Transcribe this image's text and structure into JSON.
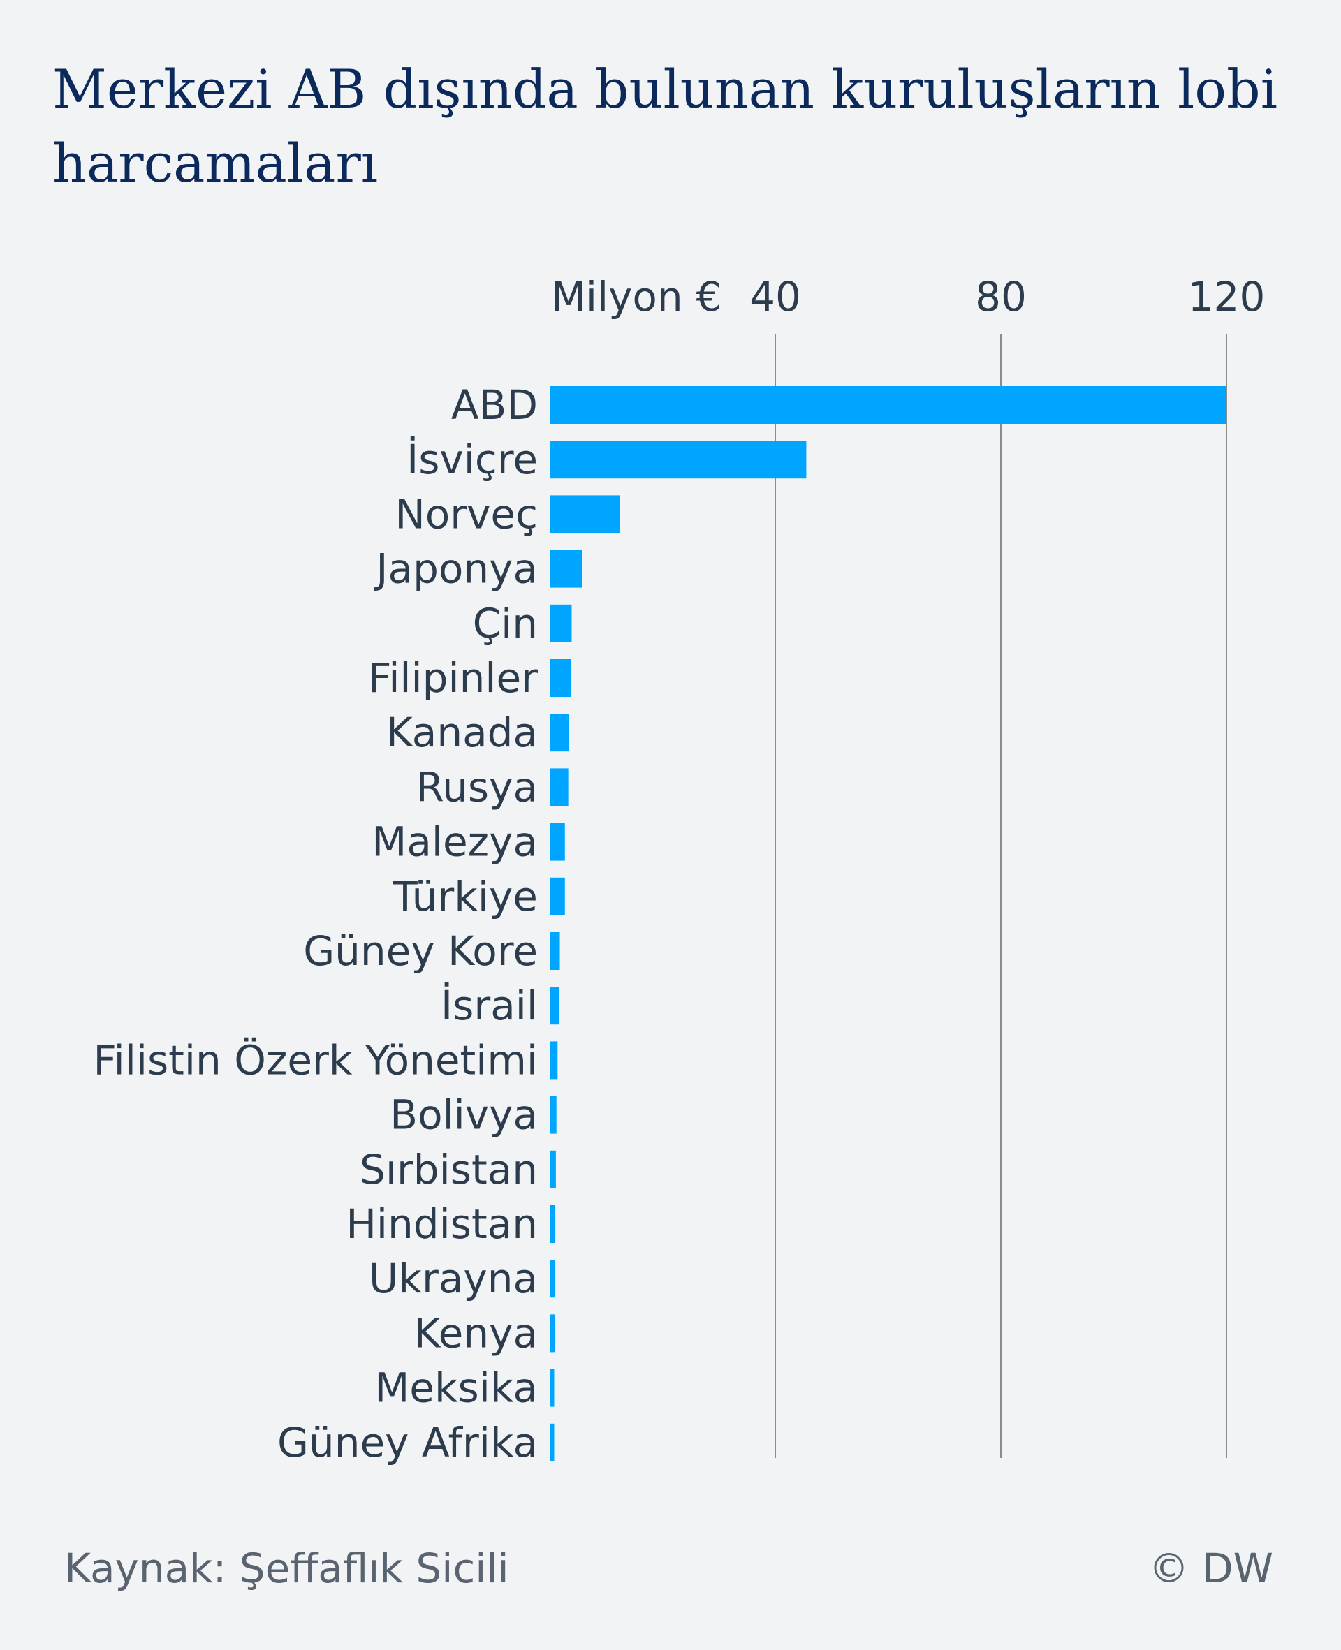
{
  "title": "Merkezi AB dışında bulunan kuruluşların lobi harcamaları",
  "footer": {
    "source": "Kaynak: Şeffaflık Sicili",
    "credit": "© DW"
  },
  "colors": {
    "bar": "#00a5ff",
    "title": "#0b2a5b",
    "text": "#2d3c4d",
    "grid": "#6b6b6b",
    "background": "#f1f3f5"
  },
  "chart_data": {
    "type": "bar",
    "orientation": "horizontal",
    "unit_label": "Milyon €",
    "xlim": [
      0,
      120
    ],
    "xticks": [
      40,
      80,
      120
    ],
    "grid": true,
    "categories": [
      "ABD",
      "İsviçre",
      "Norveç",
      "Japonya",
      "Çin",
      "Filipinler",
      "Kanada",
      "Rusya",
      "Malezya",
      "Türkiye",
      "Güney Kore",
      "İsrail",
      "Filistin Özerk Yönetimi",
      "Bolivya",
      "Sırbistan",
      "Hindistan",
      "Ukrayna",
      "Kenya",
      "Meksika",
      "Güney Afrika"
    ],
    "values": [
      120,
      45.5,
      12.5,
      5.8,
      3.9,
      3.8,
      3.4,
      3.3,
      2.7,
      2.7,
      1.8,
      1.7,
      1.4,
      1.2,
      1.1,
      1.0,
      0.9,
      0.9,
      0.8,
      0.8
    ]
  }
}
